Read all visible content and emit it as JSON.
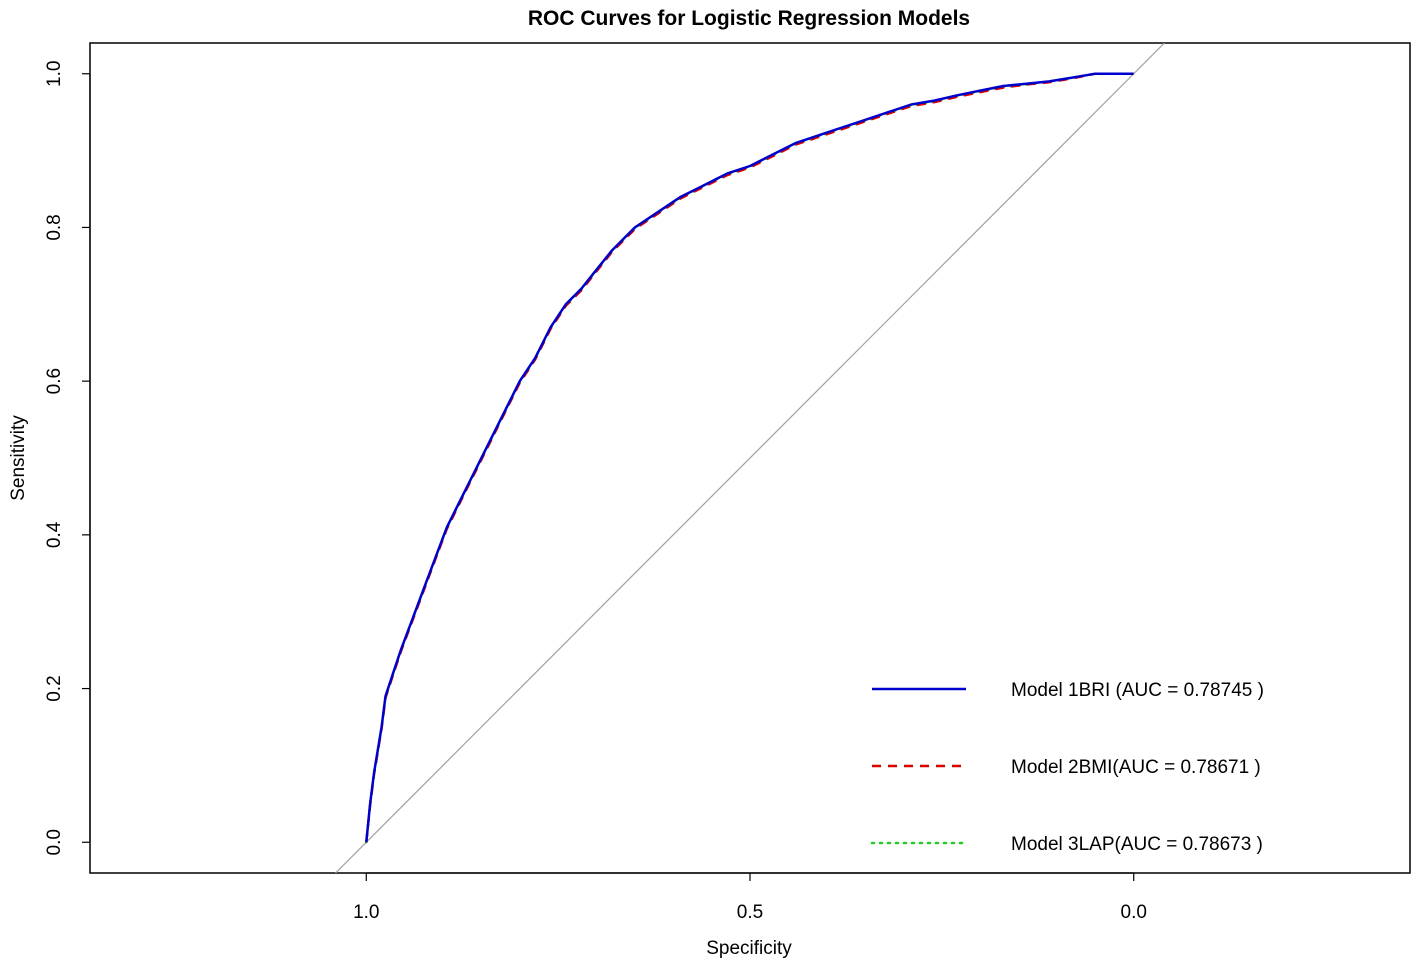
{
  "chart_data": {
    "type": "line",
    "title": "ROC Curves for Logistic Regression Models",
    "xlabel": "Specificity",
    "ylabel": "Sensitivity",
    "xlim": [
      1.36,
      -0.36
    ],
    "ylim": [
      -0.04,
      1.04
    ],
    "x_reversed": true,
    "x_ticks": [
      1.0,
      0.5,
      0.0
    ],
    "x_tick_labels": [
      "1.0",
      "0.5",
      "0.0"
    ],
    "y_ticks": [
      0.0,
      0.2,
      0.4,
      0.6,
      0.8,
      1.0
    ],
    "y_tick_labels": [
      "0.0",
      "0.2",
      "0.4",
      "0.6",
      "0.8",
      "1.0"
    ],
    "grid": false,
    "legend_position": "bottom-right",
    "reference_line": {
      "type": "diagonal",
      "color": "#a0a0a0"
    },
    "series": [
      {
        "name": "Model 1BRI (AUC = 0.78745 )",
        "color": "#0000cc",
        "style": "solid",
        "x": [
          1.0,
          0.995,
          0.99,
          0.985,
          0.98,
          0.975,
          0.965,
          0.955,
          0.94,
          0.925,
          0.91,
          0.895,
          0.88,
          0.86,
          0.84,
          0.82,
          0.8,
          0.78,
          0.76,
          0.74,
          0.72,
          0.7,
          0.68,
          0.65,
          0.62,
          0.59,
          0.56,
          0.53,
          0.5,
          0.47,
          0.44,
          0.41,
          0.38,
          0.35,
          0.32,
          0.29,
          0.26,
          0.23,
          0.2,
          0.17,
          0.14,
          0.11,
          0.08,
          0.05,
          0.03,
          0.0
        ],
        "y": [
          0.0,
          0.05,
          0.09,
          0.12,
          0.15,
          0.19,
          0.22,
          0.25,
          0.29,
          0.33,
          0.37,
          0.41,
          0.44,
          0.48,
          0.52,
          0.56,
          0.6,
          0.63,
          0.67,
          0.7,
          0.72,
          0.745,
          0.77,
          0.8,
          0.82,
          0.84,
          0.855,
          0.87,
          0.88,
          0.895,
          0.91,
          0.92,
          0.93,
          0.94,
          0.95,
          0.96,
          0.965,
          0.972,
          0.978,
          0.984,
          0.987,
          0.99,
          0.995,
          1.0,
          1.0,
          1.0
        ]
      },
      {
        "name": "Model 2BMI(AUC = 0.78671 )",
        "color": "#dd0000",
        "style": "dashed",
        "x": [
          1.0,
          0.995,
          0.99,
          0.985,
          0.98,
          0.975,
          0.965,
          0.955,
          0.94,
          0.925,
          0.91,
          0.895,
          0.88,
          0.86,
          0.84,
          0.82,
          0.8,
          0.78,
          0.76,
          0.74,
          0.72,
          0.7,
          0.68,
          0.65,
          0.62,
          0.59,
          0.56,
          0.53,
          0.5,
          0.47,
          0.44,
          0.41,
          0.38,
          0.35,
          0.32,
          0.29,
          0.26,
          0.23,
          0.2,
          0.17,
          0.14,
          0.11,
          0.08,
          0.05,
          0.03,
          0.0
        ],
        "y": [
          0.0,
          0.048,
          0.088,
          0.118,
          0.148,
          0.188,
          0.218,
          0.248,
          0.288,
          0.328,
          0.368,
          0.408,
          0.438,
          0.478,
          0.518,
          0.558,
          0.598,
          0.628,
          0.668,
          0.698,
          0.718,
          0.743,
          0.768,
          0.798,
          0.818,
          0.838,
          0.853,
          0.868,
          0.878,
          0.893,
          0.908,
          0.918,
          0.928,
          0.938,
          0.948,
          0.958,
          0.963,
          0.97,
          0.976,
          0.982,
          0.986,
          0.989,
          0.994,
          1.0,
          1.0,
          1.0
        ]
      },
      {
        "name": "Model 3LAP(AUC = 0.78673 )",
        "color": "#22cc22",
        "style": "dotted",
        "x": [
          1.0,
          0.995,
          0.99,
          0.985,
          0.98,
          0.975,
          0.965,
          0.955,
          0.94,
          0.925,
          0.91,
          0.895,
          0.88,
          0.86,
          0.84,
          0.82,
          0.8,
          0.78,
          0.76,
          0.74,
          0.72,
          0.7,
          0.68,
          0.65,
          0.62,
          0.59,
          0.56,
          0.53,
          0.5,
          0.47,
          0.44,
          0.41,
          0.38,
          0.35,
          0.32,
          0.29,
          0.26,
          0.23,
          0.2,
          0.17,
          0.14,
          0.11,
          0.08,
          0.05,
          0.03,
          0.0
        ],
        "y": [
          0.0,
          0.049,
          0.089,
          0.119,
          0.149,
          0.189,
          0.219,
          0.249,
          0.289,
          0.329,
          0.369,
          0.409,
          0.439,
          0.479,
          0.519,
          0.559,
          0.599,
          0.629,
          0.669,
          0.699,
          0.719,
          0.744,
          0.769,
          0.799,
          0.819,
          0.839,
          0.854,
          0.869,
          0.879,
          0.894,
          0.909,
          0.919,
          0.929,
          0.939,
          0.949,
          0.959,
          0.964,
          0.971,
          0.977,
          0.983,
          0.986,
          0.99,
          0.995,
          1.0,
          1.0,
          1.0
        ]
      }
    ]
  }
}
